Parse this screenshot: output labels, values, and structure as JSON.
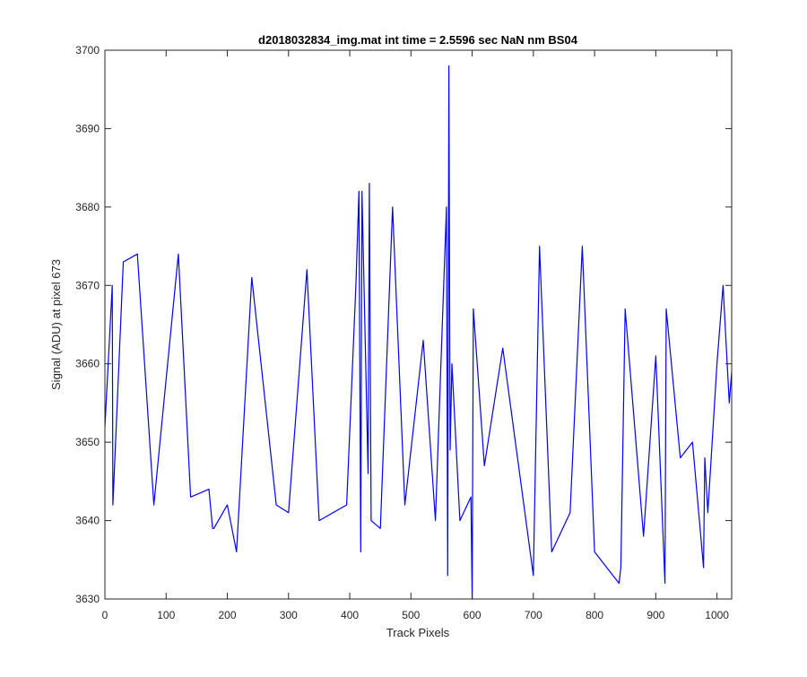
{
  "chart_data": {
    "type": "line",
    "title": "d2018032834_img.mat int time = 2.5596 sec  NaN nm BS04",
    "xlabel": "Track Pixels",
    "ylabel": "Signal (ADU) at pixel 673",
    "xlim": [
      0,
      1024
    ],
    "ylim": [
      3630,
      3700
    ],
    "xticks": [
      0,
      100,
      200,
      300,
      400,
      500,
      600,
      700,
      800,
      900,
      1000
    ],
    "yticks": [
      3630,
      3640,
      3650,
      3660,
      3670,
      3680,
      3690,
      3700
    ],
    "grid": false,
    "legend": "none",
    "line_color": "#0000ff",
    "series": [
      {
        "x": [
          0,
          12,
          13,
          30,
          53,
          80,
          120,
          140,
          170,
          176,
          178,
          200,
          215,
          240,
          280,
          300,
          330,
          350,
          395,
          410,
          415,
          418,
          420,
          430,
          432,
          435,
          450,
          470,
          490,
          520,
          540,
          558,
          560,
          562,
          564,
          567,
          580,
          598,
          600,
          602,
          620,
          650,
          700,
          710,
          730,
          760,
          780,
          800,
          840,
          843,
          850,
          880,
          900,
          915,
          917,
          940,
          960,
          978,
          980,
          985,
          1000,
          1010,
          1020,
          1024
        ],
        "y": [
          3652,
          3670,
          3642,
          3673,
          3674,
          3642,
          3674,
          3643,
          3644,
          3639,
          3639,
          3642,
          3636,
          3671,
          3642,
          3641,
          3672,
          3640,
          3642,
          3670,
          3682,
          3636,
          3682,
          3646,
          3683,
          3640,
          3639,
          3680,
          3642,
          3663,
          3640,
          3680,
          3633,
          3698,
          3649,
          3660,
          3640,
          3643,
          3630,
          3667,
          3647,
          3662,
          3633,
          3675,
          3636,
          3641,
          3675,
          3636,
          3632,
          3634,
          3667,
          3638,
          3661,
          3632,
          3667,
          3648,
          3650,
          3634,
          3648,
          3641,
          3660,
          3670,
          3655,
          3659
        ]
      }
    ]
  }
}
